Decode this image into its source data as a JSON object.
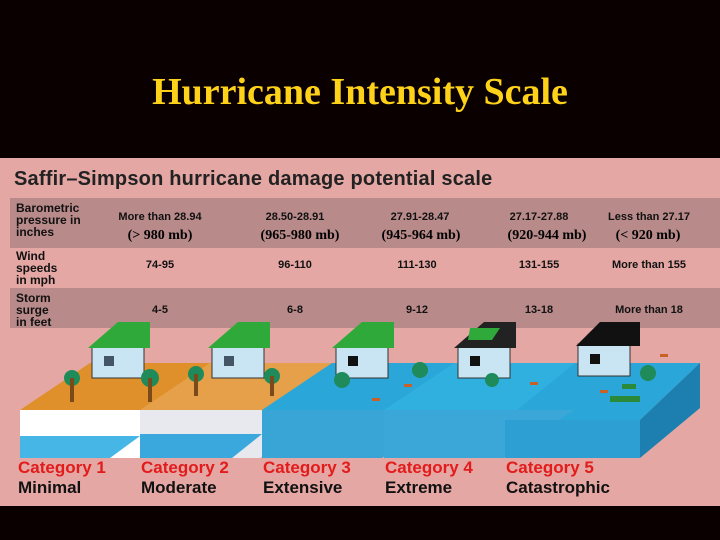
{
  "title": "Hurricane Intensity Scale",
  "panel": {
    "subtitle": "Saffir–Simpson hurricane damage potential scale",
    "rows": [
      {
        "label_lines": [
          "Barometric",
          "pressure in",
          "inches"
        ],
        "values": [
          "More than 28.94",
          "28.50-28.91",
          "27.91-28.47",
          "27.17-27.88",
          "Less than 27.17"
        ],
        "mb": [
          "(> 980 mb)",
          "(965-980 mb)",
          "(945-964 mb)",
          "(920-944 mb)",
          "(< 920 mb)"
        ]
      },
      {
        "label_lines": [
          "Wind",
          "speeds",
          "in  mph"
        ],
        "values": [
          "74-95",
          "96-110",
          "111-130",
          "131-155",
          "More than 155"
        ]
      },
      {
        "label_lines": [
          "Storm",
          "surge",
          "in feet"
        ],
        "values": [
          "4-5",
          "6-8",
          "9-12",
          "13-18",
          "More than 18"
        ]
      }
    ],
    "categories": [
      {
        "label": "Category 1",
        "desc": "Minimal"
      },
      {
        "label": "Category 2",
        "desc": "Moderate"
      },
      {
        "label": "Category 3",
        "desc": "Extensive"
      },
      {
        "label": "Category 4",
        "desc": "Extreme"
      },
      {
        "label": "Category 5",
        "desc": "Catastrophic"
      }
    ]
  },
  "colors": {
    "background": "#0a0000",
    "title": "#ffd21a",
    "panel": "#e4a7a4",
    "band": "#b98a8a",
    "category_label": "#e21b1b",
    "water": "#2aa6d8",
    "sand": "#e0902a",
    "roof": "#2faa3a",
    "house": "#c9e4f2"
  }
}
